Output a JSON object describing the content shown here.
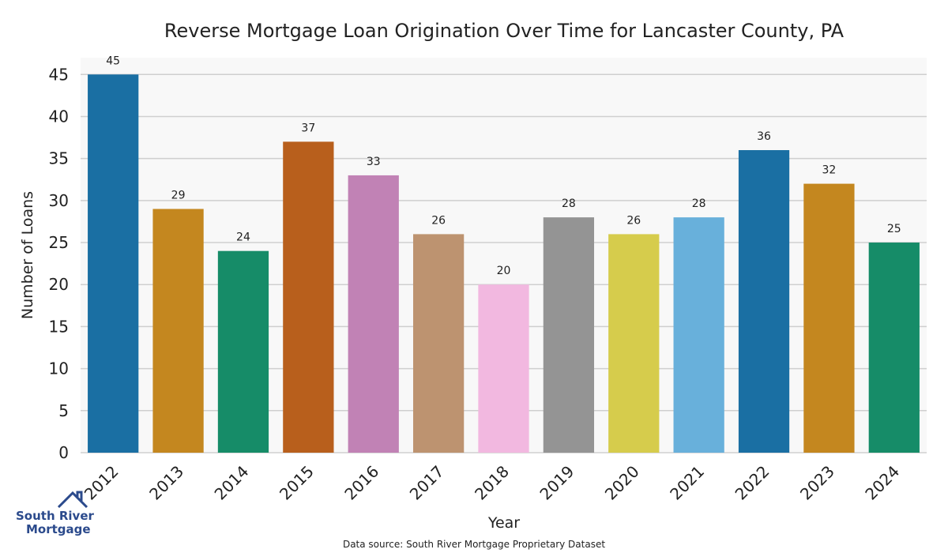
{
  "chart_data": {
    "type": "bar",
    "title": "Reverse Mortgage Loan Origination Over Time for Lancaster County, PA",
    "xlabel": "Year",
    "ylabel": "Number of Loans",
    "categories": [
      "2012",
      "2013",
      "2014",
      "2015",
      "2016",
      "2017",
      "2018",
      "2019",
      "2020",
      "2021",
      "2022",
      "2023",
      "2024"
    ],
    "values": [
      45,
      29,
      24,
      37,
      33,
      26,
      20,
      28,
      26,
      28,
      36,
      32,
      25
    ],
    "colors": [
      "#1a6fa3",
      "#c4871f",
      "#168c68",
      "#b85f1c",
      "#c182b5",
      "#bd9370",
      "#f2b8e0",
      "#949494",
      "#d6cc4c",
      "#68b0db",
      "#1a6fa3",
      "#c4871f",
      "#168c68"
    ],
    "ylim": [
      0,
      47
    ],
    "yticks": [
      0,
      5,
      10,
      15,
      20,
      25,
      30,
      35,
      40,
      45
    ],
    "grid": true,
    "grid_axis": "y",
    "data_labels": true,
    "plot_background": "#f8f8f8"
  },
  "source_note": "Data source: South River Mortgage Proprietary Dataset",
  "logo": {
    "line1": "South River",
    "line2": "Mortgage",
    "icon": "house-icon",
    "color": "#2b4a8c"
  }
}
